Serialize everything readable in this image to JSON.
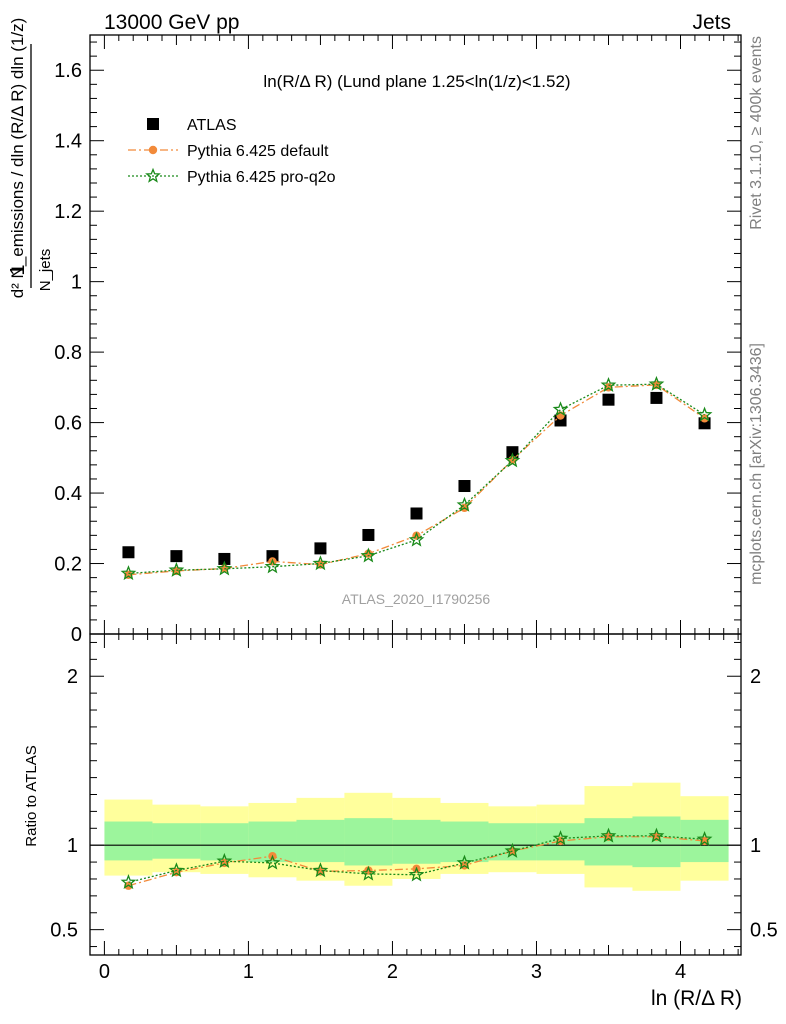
{
  "header": {
    "left": "13000 GeV pp",
    "right": "Jets"
  },
  "side_labels": {
    "rivet": "Rivet 3.1.10, ≥ 400k events",
    "mcplots": "mcplots.cern.ch [arXiv:1306.3436]"
  },
  "chart_data": [
    {
      "type": "scatter",
      "title": "ln(R/Δ R) (Lund plane 1.25<ln(1/z)<1.52)",
      "watermark": "ATLAS_2020_I1790256",
      "ylabel": {
        "frac_num": "1",
        "frac_den": "N_jets",
        "rhs": "d² N_emissions / dln (R/Δ R) dln (1/z)"
      },
      "xlim": [
        -0.1,
        4.42
      ],
      "ylim": [
        0,
        1.7
      ],
      "yticks": [
        "0",
        "0.2",
        "0.4",
        "0.6",
        "0.8",
        "1",
        "1.2",
        "1.4",
        "1.6"
      ],
      "legend_position": "top-left",
      "x": [
        0.167,
        0.5,
        0.833,
        1.167,
        1.5,
        1.833,
        2.167,
        2.5,
        2.833,
        3.167,
        3.5,
        3.833,
        4.167
      ],
      "series": [
        {
          "name": "ATLAS",
          "color": "#000000",
          "marker": "square",
          "values": [
            0.232,
            0.221,
            0.213,
            0.221,
            0.243,
            0.281,
            0.342,
            0.42,
            0.516,
            0.606,
            0.665,
            0.67,
            0.598
          ]
        },
        {
          "name": "Pythia 6.425 default",
          "color": "#f28a3a",
          "marker": "circle",
          "values": [
            0.168,
            0.179,
            0.186,
            0.206,
            0.197,
            0.228,
            0.279,
            0.358,
            0.494,
            0.62,
            0.7,
            0.707,
            0.612
          ]
        },
        {
          "name": "Pythia 6.425 pro-q2o",
          "color": "#1a8a1a",
          "marker": "star",
          "values": [
            0.172,
            0.181,
            0.185,
            0.191,
            0.2,
            0.222,
            0.267,
            0.366,
            0.492,
            0.637,
            0.706,
            0.709,
            0.622
          ]
        }
      ]
    },
    {
      "type": "scatter",
      "ylabel": "Ratio to ATLAS",
      "xlabel": "ln (R/Δ R)",
      "xlim": [
        -0.1,
        4.42
      ],
      "ylim": [
        0.35,
        2.25
      ],
      "yticks": [
        "0.5",
        "1",
        "2"
      ],
      "xticks": [
        "0",
        "1",
        "2",
        "3",
        "4"
      ],
      "x": [
        0.167,
        0.5,
        0.833,
        1.167,
        1.5,
        1.833,
        2.167,
        2.5,
        2.833,
        3.167,
        3.5,
        3.833,
        4.167
      ],
      "band_inner": [
        {
          "lo": 0.91,
          "hi": 1.14
        },
        {
          "lo": 0.92,
          "hi": 1.13
        },
        {
          "lo": 0.91,
          "hi": 1.13
        },
        {
          "lo": 0.9,
          "hi": 1.14
        },
        {
          "lo": 0.9,
          "hi": 1.15
        },
        {
          "lo": 0.88,
          "hi": 1.16
        },
        {
          "lo": 0.89,
          "hi": 1.15
        },
        {
          "lo": 0.9,
          "hi": 1.14
        },
        {
          "lo": 0.91,
          "hi": 1.13
        },
        {
          "lo": 0.91,
          "hi": 1.13
        },
        {
          "lo": 0.88,
          "hi": 1.16
        },
        {
          "lo": 0.87,
          "hi": 1.17
        },
        {
          "lo": 0.9,
          "hi": 1.15
        }
      ],
      "band_outer": [
        {
          "lo": 0.82,
          "hi": 1.27
        },
        {
          "lo": 0.84,
          "hi": 1.24
        },
        {
          "lo": 0.83,
          "hi": 1.23
        },
        {
          "lo": 0.81,
          "hi": 1.25
        },
        {
          "lo": 0.79,
          "hi": 1.28
        },
        {
          "lo": 0.76,
          "hi": 1.31
        },
        {
          "lo": 0.8,
          "hi": 1.28
        },
        {
          "lo": 0.83,
          "hi": 1.25
        },
        {
          "lo": 0.84,
          "hi": 1.23
        },
        {
          "lo": 0.83,
          "hi": 1.24
        },
        {
          "lo": 0.75,
          "hi": 1.35
        },
        {
          "lo": 0.73,
          "hi": 1.37
        },
        {
          "lo": 0.79,
          "hi": 1.29
        }
      ],
      "band_inner_color": "#9cf59c",
      "band_outer_color": "#ffff9c",
      "series": [
        {
          "name": "Pythia 6.425 default",
          "color": "#f28a3a",
          "marker": "circle",
          "values": [
            0.76,
            0.84,
            0.895,
            0.935,
            0.845,
            0.85,
            0.86,
            0.88,
            0.965,
            1.025,
            1.05,
            1.05,
            1.025
          ]
        },
        {
          "name": "Pythia 6.425 pro-q2o",
          "color": "#1a8a1a",
          "marker": "star",
          "values": [
            0.78,
            0.85,
            0.905,
            0.895,
            0.85,
            0.83,
            0.825,
            0.895,
            0.965,
            1.04,
            1.055,
            1.055,
            1.035
          ]
        }
      ]
    }
  ]
}
